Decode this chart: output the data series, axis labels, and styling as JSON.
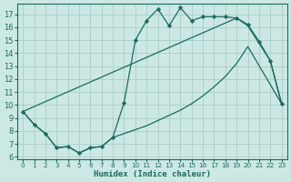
{
  "xlabel": "Humidex (Indice chaleur)",
  "background_color": "#cce8e4",
  "grid_color": "#afd0cc",
  "line_color": "#1a6b5e",
  "xlim": [
    -0.5,
    23.5
  ],
  "ylim": [
    5.8,
    17.8
  ],
  "yticks": [
    6,
    7,
    8,
    9,
    10,
    11,
    12,
    13,
    14,
    15,
    16,
    17
  ],
  "xticks": [
    0,
    1,
    2,
    3,
    4,
    5,
    6,
    7,
    8,
    9,
    10,
    11,
    12,
    13,
    14,
    15,
    16,
    17,
    18,
    19,
    20,
    21,
    22,
    23
  ],
  "line1_x": [
    0,
    1,
    2,
    3,
    4,
    5,
    6,
    7,
    8,
    9,
    10,
    11,
    12,
    13,
    14,
    15,
    16,
    17,
    18,
    19,
    20,
    21,
    22,
    23
  ],
  "line1_y": [
    9.5,
    8.5,
    7.8,
    6.7,
    6.8,
    6.3,
    6.7,
    6.8,
    7.5,
    10.2,
    15.0,
    16.5,
    17.4,
    16.1,
    17.5,
    16.5,
    16.8,
    16.8,
    16.8,
    16.7,
    16.2,
    14.9,
    13.4,
    10.1
  ],
  "line2_x": [
    0,
    1,
    2,
    3,
    4,
    5,
    6,
    7,
    8,
    9,
    10,
    11,
    12,
    13,
    14,
    15,
    16,
    17,
    18,
    19,
    20,
    23
  ],
  "line2_y": [
    9.5,
    8.5,
    7.8,
    6.7,
    6.8,
    6.3,
    6.7,
    6.8,
    7.5,
    7.8,
    8.1,
    8.4,
    8.8,
    9.2,
    9.6,
    10.1,
    10.7,
    11.4,
    12.2,
    13.2,
    14.5,
    10.1
  ],
  "line3_x": [
    0,
    19,
    20,
    22,
    23
  ],
  "line3_y": [
    9.5,
    16.7,
    16.1,
    13.4,
    10.1
  ]
}
